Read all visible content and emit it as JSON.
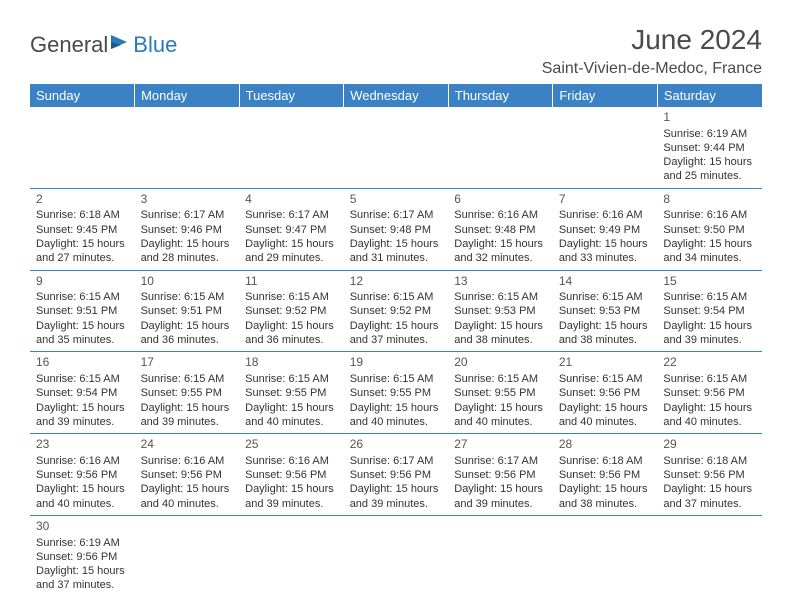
{
  "logo": {
    "text1": "General",
    "text2": "Blue"
  },
  "title": "June 2024",
  "location": "Saint-Vivien-de-Medoc, France",
  "colors": {
    "header_bg": "#3b82c4",
    "header_text": "#ffffff",
    "border": "#3b82c4",
    "body_text": "#333333",
    "logo_gray": "#4a4a4a",
    "logo_blue": "#2a7ab8"
  },
  "dayHeaders": [
    "Sunday",
    "Monday",
    "Tuesday",
    "Wednesday",
    "Thursday",
    "Friday",
    "Saturday"
  ],
  "weeks": [
    [
      null,
      null,
      null,
      null,
      null,
      null,
      {
        "d": "1",
        "sr": "6:19 AM",
        "ss": "9:44 PM",
        "dl": "15 hours and 25 minutes."
      }
    ],
    [
      {
        "d": "2",
        "sr": "6:18 AM",
        "ss": "9:45 PM",
        "dl": "15 hours and 27 minutes."
      },
      {
        "d": "3",
        "sr": "6:17 AM",
        "ss": "9:46 PM",
        "dl": "15 hours and 28 minutes."
      },
      {
        "d": "4",
        "sr": "6:17 AM",
        "ss": "9:47 PM",
        "dl": "15 hours and 29 minutes."
      },
      {
        "d": "5",
        "sr": "6:17 AM",
        "ss": "9:48 PM",
        "dl": "15 hours and 31 minutes."
      },
      {
        "d": "6",
        "sr": "6:16 AM",
        "ss": "9:48 PM",
        "dl": "15 hours and 32 minutes."
      },
      {
        "d": "7",
        "sr": "6:16 AM",
        "ss": "9:49 PM",
        "dl": "15 hours and 33 minutes."
      },
      {
        "d": "8",
        "sr": "6:16 AM",
        "ss": "9:50 PM",
        "dl": "15 hours and 34 minutes."
      }
    ],
    [
      {
        "d": "9",
        "sr": "6:15 AM",
        "ss": "9:51 PM",
        "dl": "15 hours and 35 minutes."
      },
      {
        "d": "10",
        "sr": "6:15 AM",
        "ss": "9:51 PM",
        "dl": "15 hours and 36 minutes."
      },
      {
        "d": "11",
        "sr": "6:15 AM",
        "ss": "9:52 PM",
        "dl": "15 hours and 36 minutes."
      },
      {
        "d": "12",
        "sr": "6:15 AM",
        "ss": "9:52 PM",
        "dl": "15 hours and 37 minutes."
      },
      {
        "d": "13",
        "sr": "6:15 AM",
        "ss": "9:53 PM",
        "dl": "15 hours and 38 minutes."
      },
      {
        "d": "14",
        "sr": "6:15 AM",
        "ss": "9:53 PM",
        "dl": "15 hours and 38 minutes."
      },
      {
        "d": "15",
        "sr": "6:15 AM",
        "ss": "9:54 PM",
        "dl": "15 hours and 39 minutes."
      }
    ],
    [
      {
        "d": "16",
        "sr": "6:15 AM",
        "ss": "9:54 PM",
        "dl": "15 hours and 39 minutes."
      },
      {
        "d": "17",
        "sr": "6:15 AM",
        "ss": "9:55 PM",
        "dl": "15 hours and 39 minutes."
      },
      {
        "d": "18",
        "sr": "6:15 AM",
        "ss": "9:55 PM",
        "dl": "15 hours and 40 minutes."
      },
      {
        "d": "19",
        "sr": "6:15 AM",
        "ss": "9:55 PM",
        "dl": "15 hours and 40 minutes."
      },
      {
        "d": "20",
        "sr": "6:15 AM",
        "ss": "9:55 PM",
        "dl": "15 hours and 40 minutes."
      },
      {
        "d": "21",
        "sr": "6:15 AM",
        "ss": "9:56 PM",
        "dl": "15 hours and 40 minutes."
      },
      {
        "d": "22",
        "sr": "6:15 AM",
        "ss": "9:56 PM",
        "dl": "15 hours and 40 minutes."
      }
    ],
    [
      {
        "d": "23",
        "sr": "6:16 AM",
        "ss": "9:56 PM",
        "dl": "15 hours and 40 minutes."
      },
      {
        "d": "24",
        "sr": "6:16 AM",
        "ss": "9:56 PM",
        "dl": "15 hours and 40 minutes."
      },
      {
        "d": "25",
        "sr": "6:16 AM",
        "ss": "9:56 PM",
        "dl": "15 hours and 39 minutes."
      },
      {
        "d": "26",
        "sr": "6:17 AM",
        "ss": "9:56 PM",
        "dl": "15 hours and 39 minutes."
      },
      {
        "d": "27",
        "sr": "6:17 AM",
        "ss": "9:56 PM",
        "dl": "15 hours and 39 minutes."
      },
      {
        "d": "28",
        "sr": "6:18 AM",
        "ss": "9:56 PM",
        "dl": "15 hours and 38 minutes."
      },
      {
        "d": "29",
        "sr": "6:18 AM",
        "ss": "9:56 PM",
        "dl": "15 hours and 37 minutes."
      }
    ],
    [
      {
        "d": "30",
        "sr": "6:19 AM",
        "ss": "9:56 PM",
        "dl": "15 hours and 37 minutes."
      },
      null,
      null,
      null,
      null,
      null,
      null
    ]
  ],
  "labels": {
    "sunrise": "Sunrise: ",
    "sunset": "Sunset: ",
    "daylight": "Daylight: "
  }
}
